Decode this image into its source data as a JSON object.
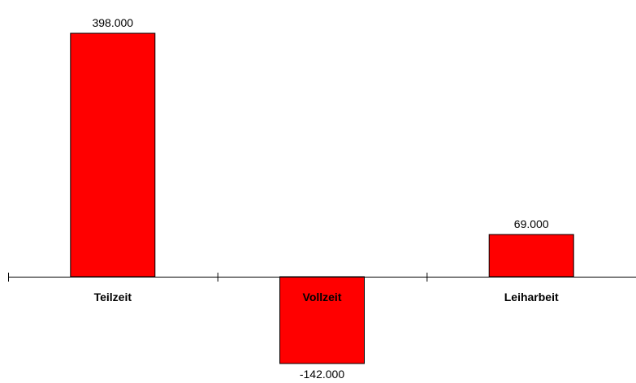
{
  "chart_data": {
    "type": "bar",
    "categories": [
      "Teilzeit",
      "Vollzeit",
      "Leiharbeit"
    ],
    "values": [
      398,
      -142,
      69
    ],
    "value_labels": [
      "398.000",
      "-142.000",
      "69.000"
    ],
    "ylim": [
      -160,
      420
    ],
    "grid": false,
    "legend": "none",
    "colors": {
      "bar_fill": "#ff0000",
      "bar_stroke": "#000000",
      "axis": "#000000",
      "text": "#000000"
    }
  }
}
